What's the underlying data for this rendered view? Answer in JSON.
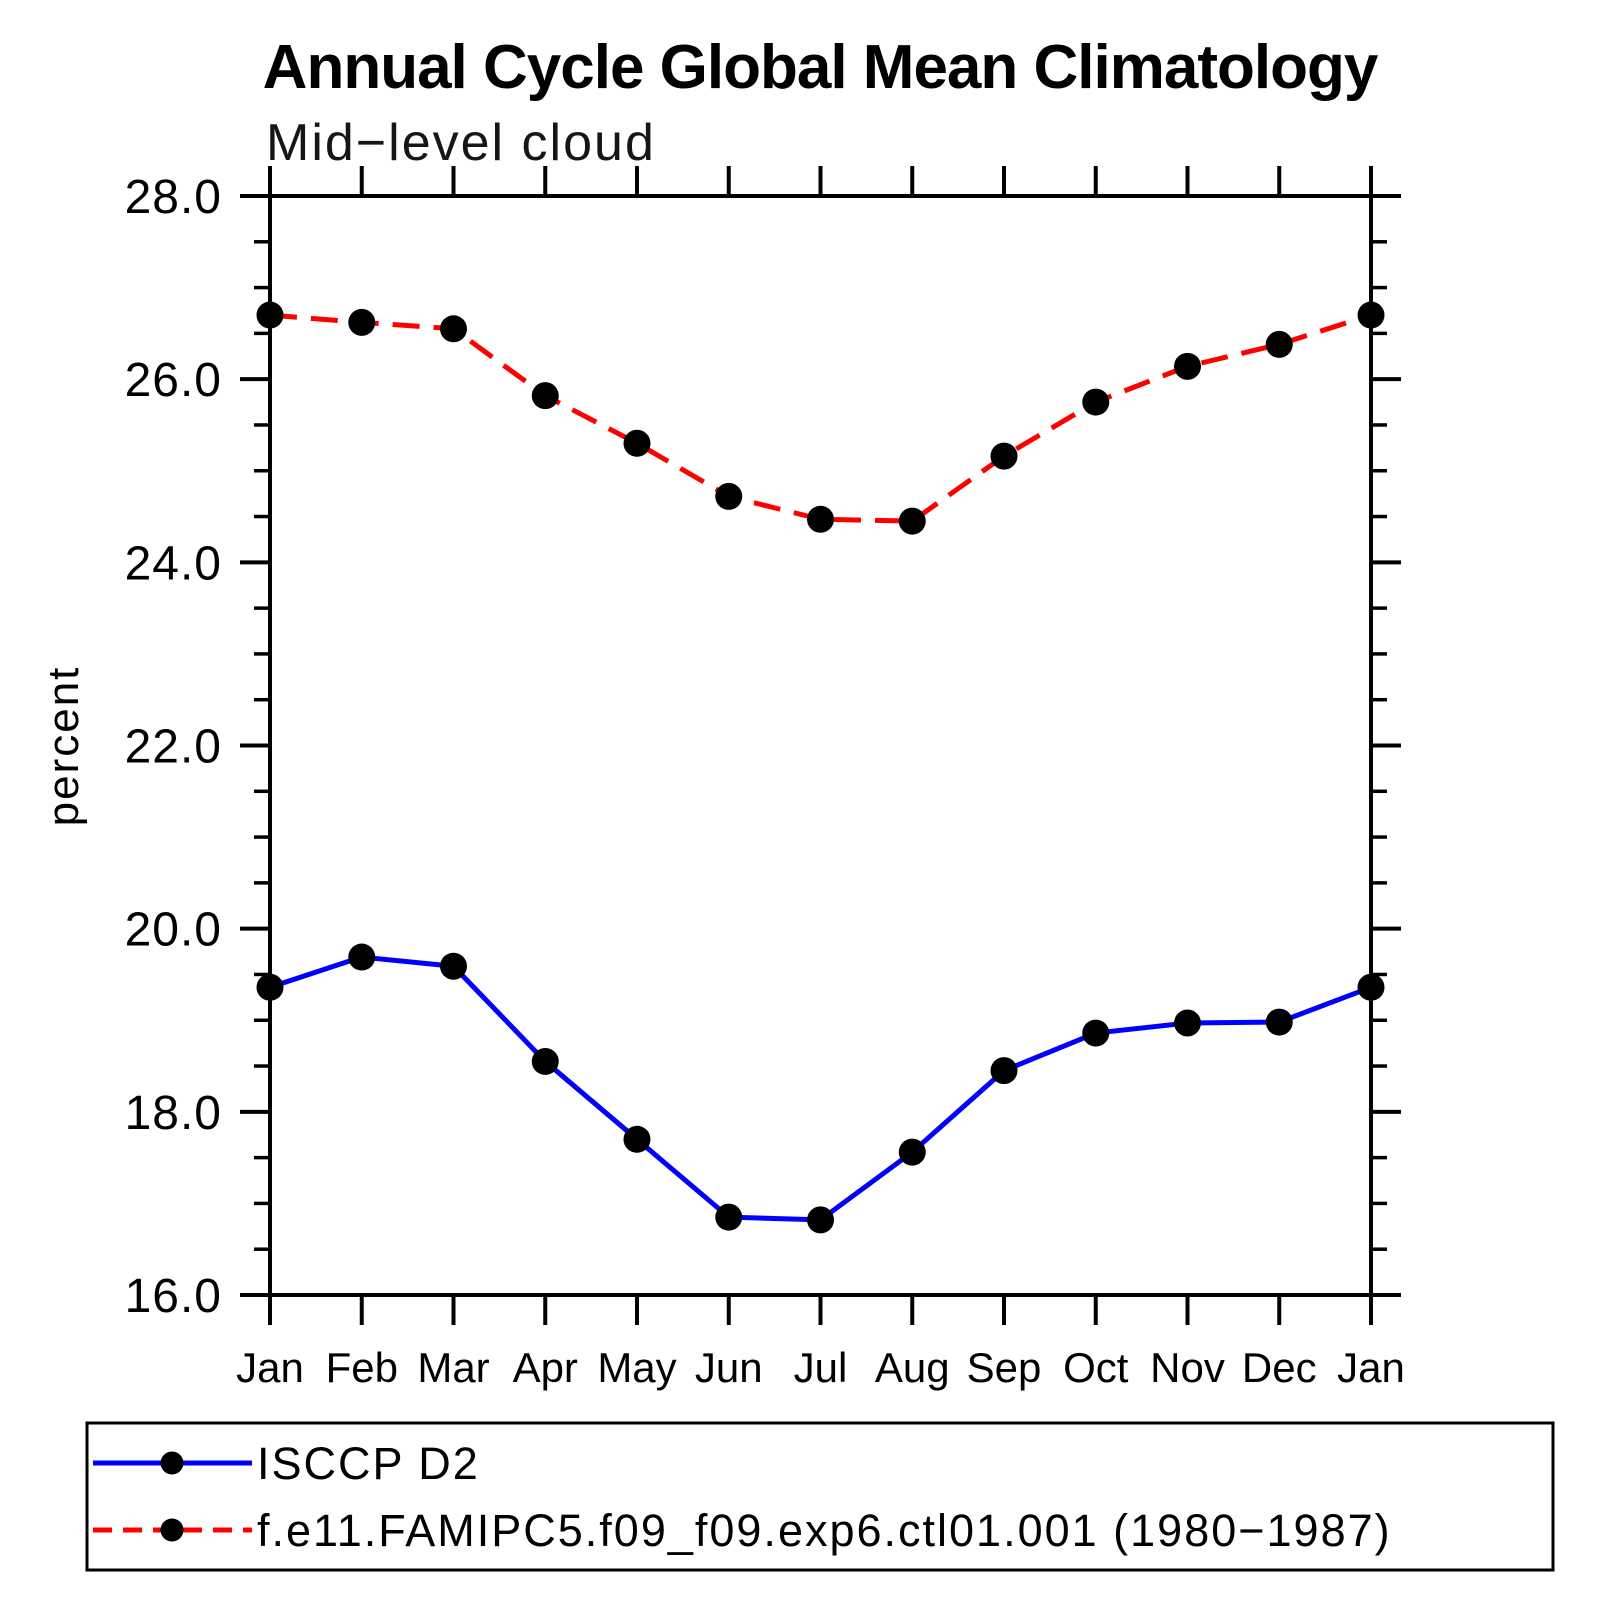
{
  "page": {
    "background": "#ffffff"
  },
  "chart_data": {
    "type": "line",
    "title": "Annual Cycle Global Mean Climatology",
    "subtitle": "Mid−level cloud",
    "xlabel": "",
    "ylabel": "percent",
    "x_tick_labels": [
      "Jan",
      "Feb",
      "Mar",
      "Apr",
      "May",
      "Jun",
      "Jul",
      "Aug",
      "Sep",
      "Oct",
      "Nov",
      "Dec",
      "Jan"
    ],
    "ylim": [
      16.0,
      28.0
    ],
    "y_major_ticks": [
      16.0,
      18.0,
      20.0,
      22.0,
      24.0,
      26.0,
      28.0
    ],
    "y_tick_labels": [
      "16.0",
      "18.0",
      "20.0",
      "22.0",
      "24.0",
      "26.0",
      "28.0"
    ],
    "y_minor_step": 0.5,
    "grid": false,
    "legend_position": "bottom-left",
    "axis_color": "#000000",
    "marker_shape": "circle",
    "series": [
      {
        "name": "ISCCP D2",
        "color": "#0000ff",
        "style": "solid",
        "marker": "circle",
        "marker_color": "#000000",
        "values": [
          19.36,
          19.69,
          19.59,
          18.55,
          17.7,
          16.85,
          16.82,
          17.56,
          18.45,
          18.86,
          18.97,
          18.98,
          19.36
        ]
      },
      {
        "name": "f.e11.FAMIPC5.f09_f09.exp6.ctl01.001 (1980−1987)",
        "color": "#ff0000",
        "style": "dashed",
        "marker": "circle",
        "marker_color": "#000000",
        "values": [
          26.7,
          26.62,
          26.55,
          25.82,
          25.3,
          24.72,
          24.47,
          24.45,
          25.16,
          25.75,
          26.14,
          26.38,
          26.7
        ]
      }
    ]
  }
}
